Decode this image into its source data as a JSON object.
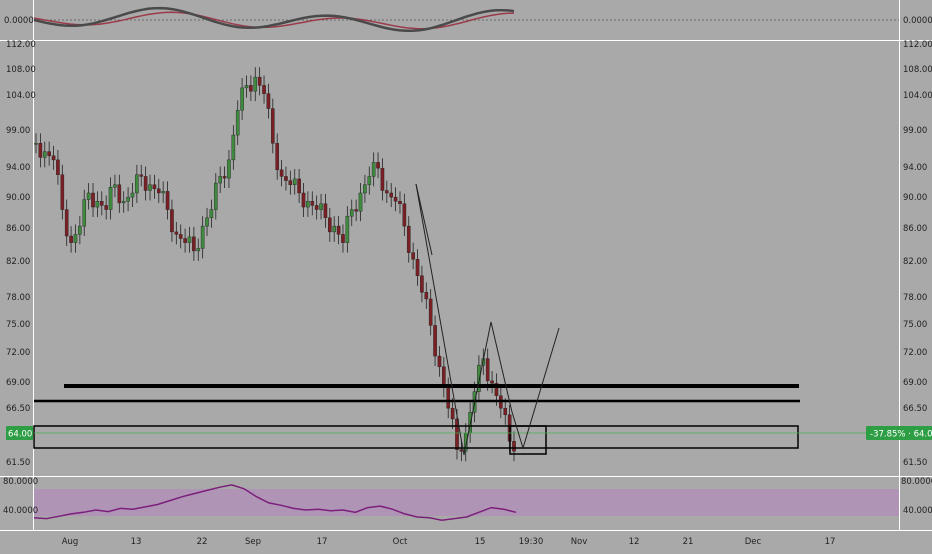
{
  "colors": {
    "background": "#a9a9a9",
    "up_candle": "#3f8a3f",
    "down_candle": "#7a1f24",
    "oscillator_fast": "#4a4a4a",
    "oscillator_slow": "#9b3b4a",
    "oscillator_up": "#2e7d3a",
    "rsi_line": "#7b1f7b",
    "rsi_band": "#b88cc0",
    "price_tag": "#2e9e45",
    "drawings": "#000000"
  },
  "top_panel": {
    "left_label": "0.0000",
    "right_label": "0.0000"
  },
  "price_axis": {
    "ticks": [
      "112.00",
      "108.00",
      "104.00",
      "99.00",
      "94.00",
      "90.00",
      "86.00",
      "82.00",
      "78.00",
      "75.00",
      "72.00",
      "69.00",
      "66.50",
      "64.00",
      "61.50"
    ]
  },
  "price_tag": {
    "left": "64.00",
    "right": "-37.85% · 64.00"
  },
  "rsi_panel": {
    "ticks": [
      "80.0000",
      "40.0000"
    ]
  },
  "time_axis": {
    "labels": [
      "Aug",
      "13",
      "22",
      "Sep",
      "17",
      "Oct",
      "15",
      "19:30",
      "Nov",
      "12",
      "21",
      "Dec",
      "17"
    ]
  },
  "chart_data": {
    "type": "candlestick",
    "title": "",
    "ylim": [
      61.5,
      112
    ],
    "main_series": {
      "name": "",
      "approx_closes": [
        100,
        99,
        98,
        92,
        88,
        90,
        94,
        93,
        92,
        95,
        93,
        94,
        96,
        95,
        94,
        92,
        89,
        88,
        87,
        90,
        92,
        96,
        98,
        104,
        107,
        108,
        106,
        100,
        96,
        95,
        94,
        93,
        92,
        91,
        90,
        88,
        92,
        94,
        96,
        97,
        94,
        93,
        90,
        86,
        82,
        78,
        73,
        68,
        63,
        65,
        70,
        74,
        71,
        68,
        64
      ]
    },
    "horizontal_levels": [
      68.8,
      67.3
    ],
    "rectangles": [
      {
        "top": 64.8,
        "bottom": 62.6
      },
      {
        "top": 64.8,
        "bottom": 62.2
      }
    ],
    "path_projection": [
      75,
      63.5,
      62.5,
      74.5
    ],
    "rsi_series": {
      "ylim": [
        20,
        80
      ],
      "approx_values": [
        33,
        32,
        35,
        38,
        40,
        43,
        41,
        45,
        44,
        47,
        50,
        55,
        60,
        64,
        68,
        72,
        75,
        70,
        60,
        52,
        49,
        45,
        43,
        44,
        42,
        43,
        40,
        46,
        48,
        44,
        38,
        34,
        33,
        30,
        32,
        34,
        40,
        46,
        44,
        40
      ]
    }
  }
}
